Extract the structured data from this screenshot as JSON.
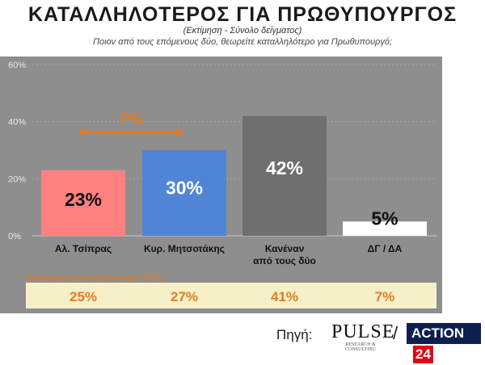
{
  "header": {
    "title": "ΚΑΤΑΛΛΗΛΟΤΕΡΟΣ ΓΙΑ ΠΡΩΘΥΠΟΥΡΓΟΣ",
    "subtitle": "(Εκτίμηση - Σύνολο δείγματος)",
    "question": "Ποιον από τους επόμενους δύο, θεωρείτε καταλληλότερο για Πρωθυπουργό;"
  },
  "chart_data": {
    "type": "bar",
    "categories": [
      "Αλ. Τσίπρας",
      "Κυρ. Μητσοτάκης",
      "Κανέναν από τους δύο",
      "ΔΓ / ΔΑ"
    ],
    "category_lines": [
      [
        "Αλ. Τσίπρας"
      ],
      [
        "Κυρ. Μητσοτάκης"
      ],
      [
        "Κανέναν",
        "από τους δύο"
      ],
      [
        "ΔΓ / ΔΑ"
      ]
    ],
    "values": [
      23,
      30,
      42,
      5
    ],
    "value_labels": [
      "23%",
      "30%",
      "42%",
      "5%"
    ],
    "bar_colors": [
      "#ff8080",
      "#4f85d4",
      "#6f6f6f",
      "#ffffff"
    ],
    "value_label_colors": [
      "#111111",
      "#ffffff",
      "#ffffff",
      "#111111"
    ],
    "ylim": [
      0,
      60
    ],
    "yticks": [
      0,
      20,
      40,
      60
    ],
    "ytick_labels": [
      "0%",
      "20%",
      "40%",
      "60%"
    ],
    "grid": true,
    "gap_annotation": {
      "label": "7%",
      "color": "#e57a22",
      "between": [
        0,
        1
      ]
    },
    "previous_survey": {
      "label": "Προηγούμενη έρευνα (Ιανουάριος 2016)",
      "values": [
        25,
        27,
        41,
        7
      ],
      "value_labels": [
        "25%",
        "27%",
        "41%",
        "7%"
      ],
      "color": "#e57a22",
      "background": "#f5f0c8"
    }
  },
  "footer": {
    "source_label": "Πηγή:",
    "pulse_logo": "PULSE",
    "pulse_sub": "RESEARCH & CONSULTING",
    "separator": "/",
    "action_text": "ACTION",
    "action_num": "24"
  }
}
